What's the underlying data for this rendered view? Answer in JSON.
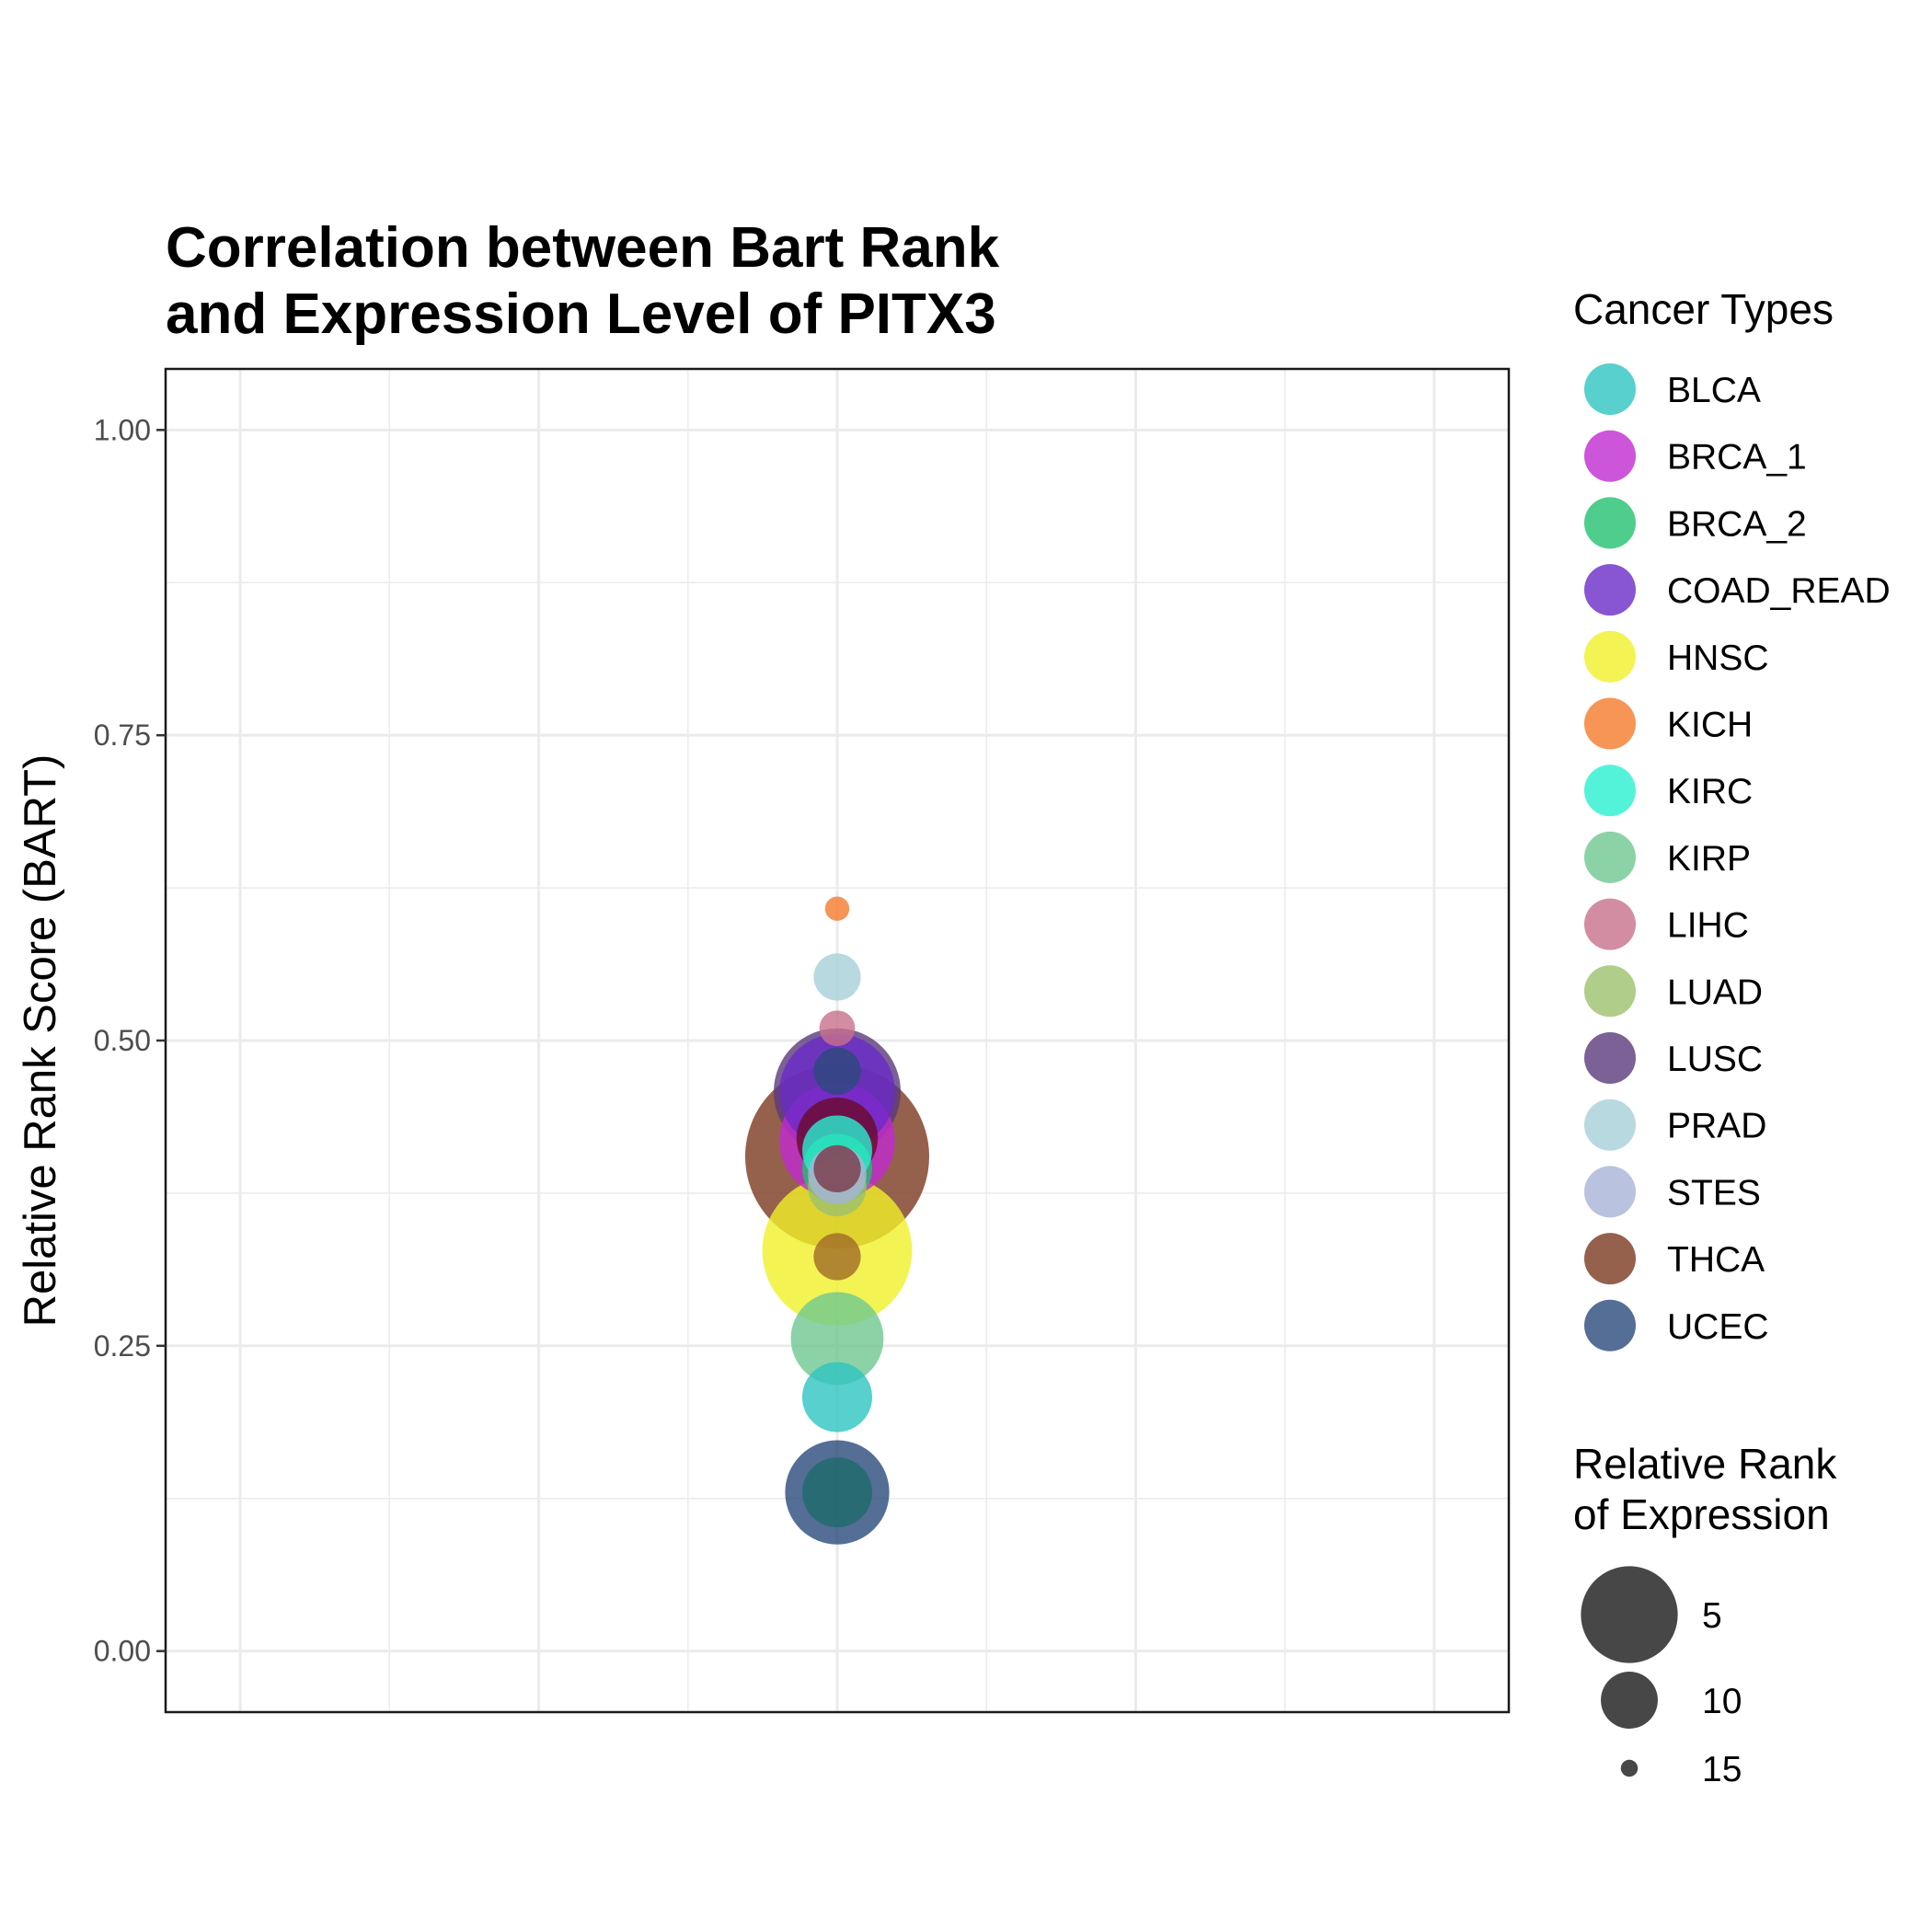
{
  "chart_data": {
    "type": "scatter",
    "title_lines": [
      "Correlation between Bart Rank",
      "and Expression Level of PITX3"
    ],
    "xlabel": "",
    "ylabel": "Relative Rank Score (BART)",
    "ylim": [
      -0.05,
      1.05
    ],
    "y_ticks": [
      0.0,
      0.25,
      0.5,
      0.75,
      1.0
    ],
    "y_tick_labels": [
      "0.00",
      "0.25",
      "0.50",
      "0.75",
      "1.00"
    ],
    "xlim": [
      0.56,
      1.44
    ],
    "x": 1,
    "grid": true,
    "legend_placement": "right",
    "color_legend_title": "Cancer Types",
    "size_legend_title_lines": [
      "Relative Rank",
      "of Expression"
    ],
    "size_legend_values": [
      5,
      10,
      15
    ],
    "series": [
      {
        "name": "BLCA",
        "color": "#2ec4c0",
        "y": 0.208,
        "expression_rank": 11
      },
      {
        "name": "BRCA_1",
        "color": "#c02ad0",
        "y": 0.418,
        "expression_rank": 7
      },
      {
        "name": "BRCA_2",
        "color": "#22c070",
        "y": 0.395,
        "expression_rank": 11
      },
      {
        "name": "COAD_READ",
        "color": "#6a2ac8",
        "y": 0.458,
        "expression_rank": 7
      },
      {
        "name": "HNSC",
        "color": "#f0f028",
        "y": 0.328,
        "expression_rank": 4
      },
      {
        "name": "KICH",
        "color": "#f47a2c",
        "y": 0.608,
        "expression_rank": 15
      },
      {
        "name": "KIRC",
        "color": "#28f0d0",
        "y": 0.41,
        "expression_rank": 11
      },
      {
        "name": "KIRP",
        "color": "#6ec890",
        "y": 0.256,
        "expression_rank": 9
      },
      {
        "name": "LIHC",
        "color": "#c8708c",
        "y": 0.51,
        "expression_rank": 14
      },
      {
        "name": "LUAD",
        "color": "#9cc06c",
        "y": 0.38,
        "expression_rank": 12
      },
      {
        "name": "LUSC",
        "color": "#5a3a7a",
        "y": 0.458,
        "expression_rank": 6
      },
      {
        "name": "PRAD",
        "color": "#a8d0d8",
        "y": 0.552,
        "expression_rank": 13
      },
      {
        "name": "STES",
        "color": "#a8b4d8",
        "y": 0.39,
        "expression_rank": 12
      },
      {
        "name": "THCA",
        "color": "#7a3a20",
        "y": 0.405,
        "expression_rank": 1
      },
      {
        "name": "UCEC",
        "color": "#2a4a7c",
        "y": 0.13,
        "expression_rank": 8
      }
    ],
    "extra_points": [
      {
        "color": "#2a4a7c",
        "y": 0.475,
        "expression_rank": 13
      },
      {
        "color": "#6a0a2a",
        "y": 0.42,
        "expression_rank": 10
      },
      {
        "color": "#a06a28",
        "y": 0.323,
        "expression_rank": 13
      },
      {
        "color": "#7a3a4a",
        "y": 0.395,
        "expression_rank": 13
      },
      {
        "color": "#1e6a6a",
        "y": 0.13,
        "expression_rank": 11
      }
    ]
  }
}
